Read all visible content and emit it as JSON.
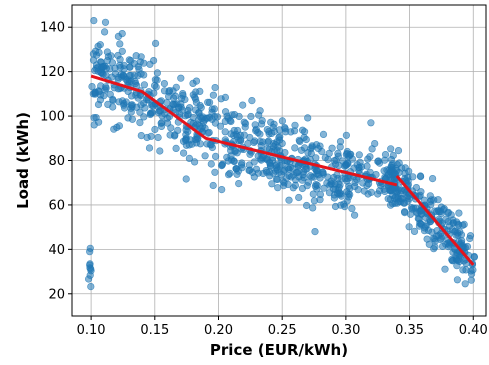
{
  "chart_data": {
    "type": "scatter",
    "title": "",
    "xlabel": "Price (EUR/kWh)",
    "ylabel": "Load (kWh)",
    "xlim": [
      0.085,
      0.41
    ],
    "ylim": [
      10,
      150
    ],
    "x_ticks": [
      0.1,
      0.15,
      0.2,
      0.25,
      0.3,
      0.35,
      0.4
    ],
    "x_tick_labels": [
      "0.10",
      "0.15",
      "0.20",
      "0.25",
      "0.30",
      "0.35",
      "0.40"
    ],
    "y_ticks": [
      20,
      40,
      60,
      80,
      100,
      120,
      140
    ],
    "y_tick_labels": [
      "20",
      "40",
      "60",
      "80",
      "100",
      "120",
      "140"
    ],
    "grid": true,
    "colors": {
      "points": "#1f77b4",
      "fit_line": "#e3141c",
      "grid": "#b0b0b0"
    },
    "series": [
      {
        "type": "scatter",
        "points_description_trend": [
          [
            0.1,
            118,
            16
          ],
          [
            0.12,
            115,
            14
          ],
          [
            0.14,
            111,
            14
          ],
          [
            0.16,
            103,
            12
          ],
          [
            0.18,
            96,
            12
          ],
          [
            0.2,
            89,
            12
          ],
          [
            0.22,
            86,
            12
          ],
          [
            0.24,
            83,
            11
          ],
          [
            0.26,
            79,
            11
          ],
          [
            0.28,
            75,
            11
          ],
          [
            0.3,
            72,
            11
          ],
          [
            0.32,
            74,
            8
          ],
          [
            0.34,
            70,
            8
          ],
          [
            0.355,
            60,
            8
          ],
          [
            0.37,
            53,
            8
          ],
          [
            0.385,
            45,
            8
          ],
          [
            0.4,
            33,
            8
          ]
        ],
        "n_points": 1000
      },
      {
        "type": "line",
        "segments": [
          {
            "x": [
              0.1,
              0.14,
              0.19,
              0.34
            ],
            "y": [
              118,
              111,
              90,
              69
            ]
          },
          {
            "x": [
              0.34,
              0.4
            ],
            "y": [
              73,
              33
            ]
          }
        ]
      }
    ]
  }
}
